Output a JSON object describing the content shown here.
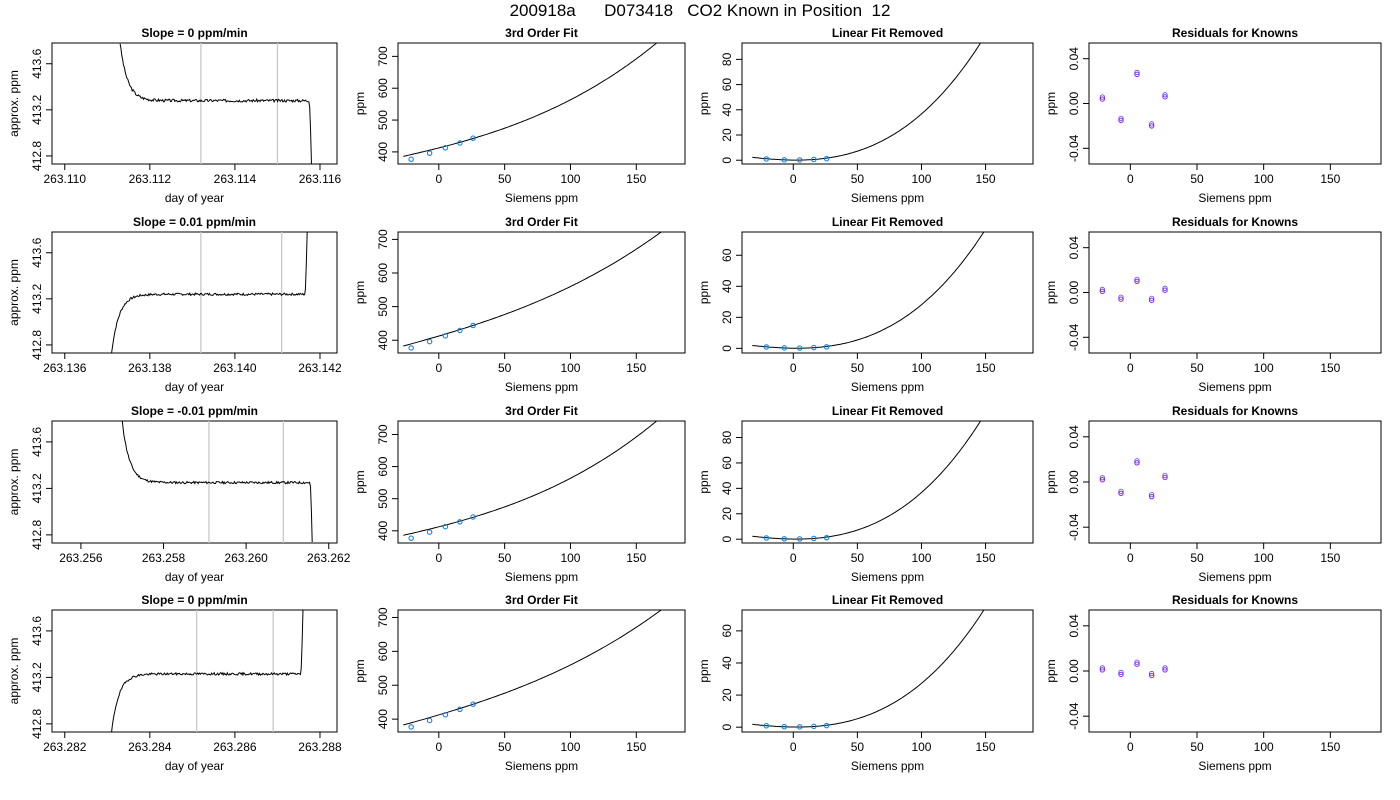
{
  "figure": {
    "title": "200918a      D073418   CO2 Known in Position  12"
  },
  "colors": {
    "trace": "#000000",
    "marker_line": "#c8c8c8",
    "point_blue": "#1a1aff",
    "point_purple": "#a020f0",
    "point_cyan": "#00c8c8",
    "point_orange": "#ffa500"
  },
  "chart_data": [
    {
      "type": "line",
      "row": 0,
      "panel": "timeseries",
      "title": "Slope =  0  ppm/min",
      "xlabel": "day of year",
      "ylabel": "approx. ppm",
      "xlim": [
        263.1097,
        263.1164
      ],
      "ylim": [
        412.73,
        413.78
      ],
      "xticks": [
        "263.110",
        "263.112",
        "263.114",
        "263.116"
      ],
      "xtick_values": [
        263.11,
        263.112,
        263.114,
        263.116
      ],
      "yticks": [
        "412.8",
        "413.2",
        "413.6"
      ],
      "ytick_values": [
        412.8,
        413.2,
        413.6
      ],
      "markers_x": [
        263.1132,
        263.115
      ],
      "trace": {
        "start": 263.1113,
        "end": 263.1158,
        "level": 413.28,
        "initial_value": 413.78,
        "tail_value": 412.73,
        "tail_start": 263.11575,
        "noise": 0.012,
        "seed": 3
      }
    },
    {
      "type": "scatter",
      "row": 0,
      "panel": "fit",
      "title": "3rd Order Fit",
      "xlabel": "Siemens ppm",
      "ylabel": "ppm",
      "xlim": [
        -31,
        187
      ],
      "ylim": [
        362,
        742
      ],
      "xticks": [
        "0",
        "50",
        "100",
        "150"
      ],
      "xtick_values": [
        0,
        50,
        100,
        150
      ],
      "yticks": [
        "400",
        "500",
        "600",
        "700"
      ],
      "ytick_values": [
        400,
        500,
        600,
        700
      ],
      "curve": {
        "x_from": -27,
        "x_to": 180,
        "c0": 412.5,
        "c1": 1.05,
        "c2": 0.00296,
        "c3": 1.65e-05
      },
      "points": {
        "x": [
          -21,
          -7,
          5,
          16,
          26
        ],
        "y": [
          377,
          396,
          413,
          428,
          443
        ]
      }
    },
    {
      "type": "scatter",
      "row": 0,
      "panel": "linear-removed",
      "title": "Linear Fit Removed",
      "xlabel": "Siemens ppm",
      "ylabel": "ppm",
      "xlim": [
        -40,
        187
      ],
      "ylim": [
        -3,
        93
      ],
      "xticks": [
        "0",
        "50",
        "100",
        "150"
      ],
      "xtick_values": [
        0,
        50,
        100,
        150
      ],
      "yticks": [
        "0",
        "20",
        "40",
        "60",
        "80"
      ],
      "ytick_values": [
        0,
        20,
        40,
        60,
        80
      ],
      "curve": {
        "x_from": -32,
        "x_to": 180,
        "c0": 0.1,
        "c1": -0.01,
        "c2": 0.00232,
        "c3": 1.44e-05
      },
      "points": {
        "x": [
          -21,
          -7,
          5,
          16,
          26
        ],
        "y": [
          1.0,
          0.3,
          0.2,
          0.6,
          1.2
        ]
      }
    },
    {
      "type": "scatter",
      "row": 0,
      "panel": "residuals",
      "title": "Residuals for Knowns",
      "xlabel": "Siemens ppm",
      "ylabel": "ppm",
      "xlim": [
        -31,
        188
      ],
      "ylim": [
        -0.054,
        0.054
      ],
      "xticks": [
        "0",
        "50",
        "100",
        "150"
      ],
      "xtick_values": [
        0,
        50,
        100,
        150
      ],
      "yticks": [
        "-0.04",
        "0.00",
        "0.04"
      ],
      "ytick_values": [
        -0.04,
        0.0,
        0.04
      ],
      "points": {
        "x": [
          -21,
          -7,
          5,
          16,
          26
        ],
        "y": [
          0.004,
          -0.015,
          0.026,
          -0.02,
          0.006
        ]
      }
    },
    {
      "type": "line",
      "row": 1,
      "panel": "timeseries",
      "title": "Slope =  0.01  ppm/min",
      "xlabel": "day of year",
      "ylabel": "approx. ppm",
      "xlim": [
        263.1357,
        263.1424
      ],
      "ylim": [
        412.73,
        413.78
      ],
      "xticks": [
        "263.136",
        "263.138",
        "263.140",
        "263.142"
      ],
      "xtick_values": [
        263.136,
        263.138,
        263.14,
        263.142
      ],
      "yticks": [
        "412.8",
        "413.2",
        "413.6"
      ],
      "ytick_values": [
        412.8,
        413.2,
        413.6
      ],
      "markers_x": [
        263.1392,
        263.1411
      ],
      "trace": {
        "start": 263.1371,
        "end": 263.1417,
        "level": 413.24,
        "initial_value": 412.73,
        "tail_value": 413.78,
        "tail_start": 263.14165,
        "noise": 0.01,
        "seed": 7
      }
    },
    {
      "type": "scatter",
      "row": 1,
      "panel": "fit",
      "title": "3rd Order Fit",
      "xlabel": "Siemens ppm",
      "ylabel": "ppm",
      "xlim": [
        -31,
        187
      ],
      "ylim": [
        362,
        722
      ],
      "xticks": [
        "0",
        "50",
        "100",
        "150"
      ],
      "xtick_values": [
        0,
        50,
        100,
        150
      ],
      "yticks": [
        "400",
        "500",
        "600",
        "700"
      ],
      "ytick_values": [
        400,
        500,
        600,
        700
      ],
      "curve": {
        "x_from": -27,
        "x_to": 180,
        "c0": 412.5,
        "c1": 1.15,
        "c2": 0.00205,
        "c3": 1.18e-05
      },
      "points": {
        "x": [
          -21,
          -7,
          5,
          16,
          26
        ],
        "y": [
          377,
          396,
          413,
          429,
          444
        ]
      }
    },
    {
      "type": "scatter",
      "row": 1,
      "panel": "linear-removed",
      "title": "Linear Fit Removed",
      "xlabel": "Siemens ppm",
      "ylabel": "ppm",
      "xlim": [
        -40,
        187
      ],
      "ylim": [
        -3,
        75
      ],
      "xticks": [
        "0",
        "50",
        "100",
        "150"
      ],
      "xtick_values": [
        0,
        50,
        100,
        150
      ],
      "yticks": [
        "0",
        "20",
        "40",
        "60"
      ],
      "ytick_values": [
        0,
        20,
        40,
        60
      ],
      "curve": {
        "x_from": -32,
        "x_to": 180,
        "c0": 0.1,
        "c1": -0.01,
        "c2": 0.00175,
        "c3": 1.15e-05
      },
      "points": {
        "x": [
          -21,
          -7,
          5,
          16,
          26
        ],
        "y": [
          0.9,
          0.3,
          0.2,
          0.5,
          1.0
        ]
      }
    },
    {
      "type": "scatter",
      "row": 1,
      "panel": "residuals",
      "title": "Residuals for Knowns",
      "xlabel": "Siemens ppm",
      "ylabel": "ppm",
      "xlim": [
        -31,
        188
      ],
      "ylim": [
        -0.054,
        0.054
      ],
      "xticks": [
        "0",
        "50",
        "100",
        "150"
      ],
      "xtick_values": [
        0,
        50,
        100,
        150
      ],
      "yticks": [
        "-0.04",
        "0.00",
        "0.04"
      ],
      "ytick_values": [
        -0.04,
        0.0,
        0.04
      ],
      "points": {
        "x": [
          -21,
          -7,
          5,
          16,
          26
        ],
        "y": [
          0.001,
          -0.006,
          0.01,
          -0.007,
          0.002
        ]
      }
    },
    {
      "type": "line",
      "row": 2,
      "panel": "timeseries",
      "title": "Slope =  -0.01  ppm/min",
      "xlabel": "day of year",
      "ylabel": "approx. ppm",
      "xlim": [
        263.2553,
        263.2622
      ],
      "ylim": [
        412.73,
        413.78
      ],
      "xticks": [
        "263.256",
        "263.258",
        "263.260",
        "263.262"
      ],
      "xtick_values": [
        263.256,
        263.258,
        263.26,
        263.262
      ],
      "yticks": [
        "412.8",
        "413.2",
        "413.6"
      ],
      "ytick_values": [
        412.8,
        413.2,
        413.6
      ],
      "markers_x": [
        263.2591,
        263.2609
      ],
      "trace": {
        "start": 263.257,
        "end": 263.2616,
        "level": 413.25,
        "initial_value": 413.78,
        "tail_value": 412.73,
        "tail_start": 263.26155,
        "noise": 0.01,
        "seed": 11
      }
    },
    {
      "type": "scatter",
      "row": 2,
      "panel": "fit",
      "title": "3rd Order Fit",
      "xlabel": "Siemens ppm",
      "ylabel": "ppm",
      "xlim": [
        -31,
        187
      ],
      "ylim": [
        362,
        742
      ],
      "xticks": [
        "0",
        "50",
        "100",
        "150"
      ],
      "xtick_values": [
        0,
        50,
        100,
        150
      ],
      "yticks": [
        "400",
        "500",
        "600",
        "700"
      ],
      "ytick_values": [
        400,
        500,
        600,
        700
      ],
      "curve": {
        "x_from": -27,
        "x_to": 180,
        "c0": 412.5,
        "c1": 1.05,
        "c2": 0.00296,
        "c3": 1.65e-05
      },
      "points": {
        "x": [
          -21,
          -7,
          5,
          16,
          26
        ],
        "y": [
          377,
          396,
          413,
          428,
          443
        ]
      }
    },
    {
      "type": "scatter",
      "row": 2,
      "panel": "linear-removed",
      "title": "Linear Fit Removed",
      "xlabel": "Siemens ppm",
      "ylabel": "ppm",
      "xlim": [
        -40,
        187
      ],
      "ylim": [
        -3,
        93
      ],
      "xticks": [
        "0",
        "50",
        "100",
        "150"
      ],
      "xtick_values": [
        0,
        50,
        100,
        150
      ],
      "yticks": [
        "0",
        "20",
        "40",
        "60",
        "80"
      ],
      "ytick_values": [
        0,
        20,
        40,
        60,
        80
      ],
      "curve": {
        "x_from": -32,
        "x_to": 180,
        "c0": 0.1,
        "c1": -0.01,
        "c2": 0.00232,
        "c3": 1.44e-05
      },
      "points": {
        "x": [
          -21,
          -7,
          5,
          16,
          26
        ],
        "y": [
          1.0,
          0.3,
          0.2,
          0.6,
          1.2
        ]
      }
    },
    {
      "type": "scatter",
      "row": 2,
      "panel": "residuals",
      "title": "Residuals for Knowns",
      "xlabel": "Siemens ppm",
      "ylabel": "ppm",
      "xlim": [
        -31,
        188
      ],
      "ylim": [
        -0.054,
        0.054
      ],
      "xticks": [
        "0",
        "50",
        "100",
        "150"
      ],
      "xtick_values": [
        0,
        50,
        100,
        150
      ],
      "yticks": [
        "-0.04",
        "0.00",
        "0.04"
      ],
      "ytick_values": [
        -0.04,
        0.0,
        0.04
      ],
      "points": {
        "x": [
          -21,
          -7,
          5,
          16,
          26
        ],
        "y": [
          0.002,
          -0.01,
          0.017,
          -0.013,
          0.004
        ]
      }
    },
    {
      "type": "line",
      "row": 3,
      "panel": "timeseries",
      "title": "Slope =  0  ppm/min",
      "xlabel": "day of year",
      "ylabel": "approx. ppm",
      "xlim": [
        263.2817,
        263.2884
      ],
      "ylim": [
        412.73,
        413.78
      ],
      "xticks": [
        "263.282",
        "263.284",
        "263.286",
        "263.288"
      ],
      "xtick_values": [
        263.282,
        263.284,
        263.286,
        263.288
      ],
      "yticks": [
        "412.8",
        "413.2",
        "413.6"
      ],
      "ytick_values": [
        412.8,
        413.2,
        413.6
      ],
      "markers_x": [
        263.2851,
        263.2869
      ],
      "trace": {
        "start": 263.2831,
        "end": 263.2876,
        "level": 413.23,
        "initial_value": 412.73,
        "tail_value": 413.78,
        "tail_start": 263.28755,
        "noise": 0.01,
        "seed": 19
      }
    },
    {
      "type": "scatter",
      "row": 3,
      "panel": "fit",
      "title": "3rd Order Fit",
      "xlabel": "Siemens ppm",
      "ylabel": "ppm",
      "xlim": [
        -31,
        187
      ],
      "ylim": [
        362,
        722
      ],
      "xticks": [
        "0",
        "50",
        "100",
        "150"
      ],
      "xtick_values": [
        0,
        50,
        100,
        150
      ],
      "yticks": [
        "400",
        "500",
        "600",
        "700"
      ],
      "ytick_values": [
        400,
        500,
        600,
        700
      ],
      "curve": {
        "x_from": -27,
        "x_to": 180,
        "c0": 412.5,
        "c1": 1.15,
        "c2": 0.00205,
        "c3": 1.18e-05
      },
      "points": {
        "x": [
          -21,
          -7,
          5,
          16,
          26
        ],
        "y": [
          377,
          396,
          413,
          429,
          444
        ]
      }
    },
    {
      "type": "scatter",
      "row": 3,
      "panel": "linear-removed",
      "title": "Linear Fit Removed",
      "xlabel": "Siemens ppm",
      "ylabel": "ppm",
      "xlim": [
        -40,
        187
      ],
      "ylim": [
        -3,
        73
      ],
      "xticks": [
        "0",
        "50",
        "100",
        "150"
      ],
      "xtick_values": [
        0,
        50,
        100,
        150
      ],
      "yticks": [
        "0",
        "20",
        "40",
        "60"
      ],
      "ytick_values": [
        0,
        20,
        40,
        60
      ],
      "curve": {
        "x_from": -32,
        "x_to": 180,
        "c0": 0.1,
        "c1": -0.01,
        "c2": 0.0017,
        "c3": 1.12e-05
      },
      "points": {
        "x": [
          -21,
          -7,
          5,
          16,
          26
        ],
        "y": [
          0.9,
          0.3,
          0.2,
          0.5,
          1.0
        ]
      }
    },
    {
      "type": "scatter",
      "row": 3,
      "panel": "residuals",
      "title": "Residuals for Knowns",
      "xlabel": "Siemens ppm",
      "ylabel": "ppm",
      "xlim": [
        -31,
        188
      ],
      "ylim": [
        -0.054,
        0.054
      ],
      "xticks": [
        "0",
        "50",
        "100",
        "150"
      ],
      "xtick_values": [
        0,
        50,
        100,
        150
      ],
      "yticks": [
        "-0.04",
        "0.00",
        "0.04"
      ],
      "ytick_values": [
        -0.04,
        0.0,
        0.04
      ],
      "points": {
        "x": [
          -21,
          -7,
          5,
          16,
          26
        ],
        "y": [
          0.001,
          -0.003,
          0.006,
          -0.004,
          0.001
        ]
      }
    }
  ]
}
